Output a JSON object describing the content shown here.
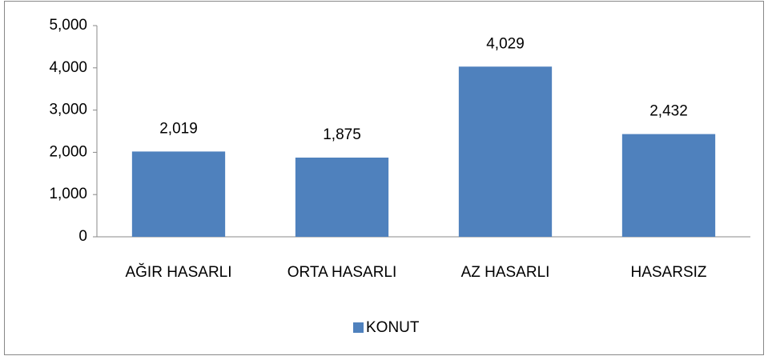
{
  "chart_data": {
    "type": "bar",
    "categories": [
      "AĞIR HASARLI",
      "ORTA HASARLI",
      "AZ HASARLI",
      "HASARSIZ"
    ],
    "series": [
      {
        "name": "KONUT",
        "color": "#4f81bd",
        "values": [
          2019,
          1875,
          4029,
          2432
        ],
        "value_labels": [
          "2,019",
          "1,875",
          "4,029",
          "2,432"
        ]
      }
    ],
    "ylim": [
      0,
      5000
    ],
    "yticks": [
      0,
      {
        "value": 1000,
        "label": "1,000"
      },
      {
        "value": 2000,
        "label": "2,000"
      },
      {
        "value": 3000,
        "label": "3,000"
      },
      {
        "value": 4000,
        "label": "4,000"
      },
      {
        "value": 5000,
        "label": "5,000"
      }
    ],
    "grid": false,
    "legend": "bottom"
  }
}
